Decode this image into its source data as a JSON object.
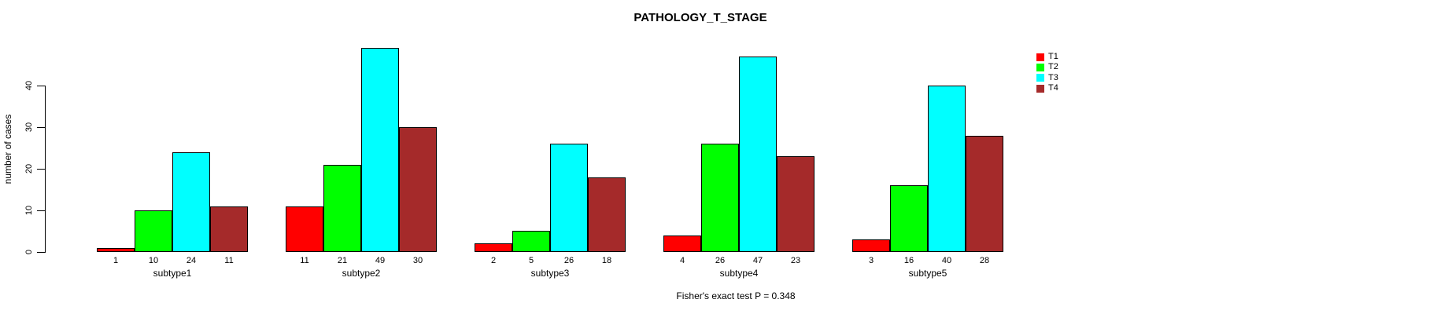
{
  "chart_data": {
    "type": "bar",
    "title": "PATHOLOGY_T_STAGE",
    "ylabel": "number of cases",
    "annotation": "Fisher's exact test P = 0.348",
    "categories": [
      "subtype1",
      "subtype2",
      "subtype3",
      "subtype4",
      "subtype5"
    ],
    "series": [
      {
        "name": "T1",
        "color": "#FF0000",
        "values": [
          1,
          11,
          2,
          4,
          3
        ]
      },
      {
        "name": "T2",
        "color": "#00FF00",
        "values": [
          10,
          21,
          5,
          26,
          16
        ]
      },
      {
        "name": "T3",
        "color": "#00FFFF",
        "values": [
          24,
          49,
          26,
          47,
          40
        ]
      },
      {
        "name": "T4",
        "color": "#A52A2A",
        "values": [
          11,
          30,
          18,
          23,
          28
        ]
      }
    ],
    "yticks": [
      0,
      10,
      20,
      30,
      40
    ],
    "ylim": [
      0,
      49
    ],
    "bar_value_labels": true,
    "grid": false,
    "legend_position": "right",
    "colors": {
      "background": "#FFFFFF",
      "axis": "#000000",
      "text": "#000000"
    }
  }
}
